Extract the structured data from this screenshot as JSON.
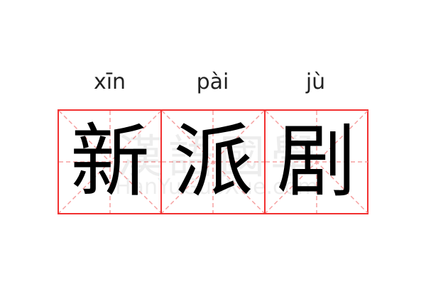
{
  "characters": [
    {
      "hanzi": "新",
      "pinyin": "xīn"
    },
    {
      "hanzi": "派",
      "pinyin": "pài"
    },
    {
      "hanzi": "剧",
      "pinyin": "jù"
    }
  ],
  "watermark": {
    "chinese": "漢語國學",
    "latin": "HanYuGuoXue.com"
  },
  "colors": {
    "border": "#f23030",
    "guide": "#f5a0a0"
  }
}
